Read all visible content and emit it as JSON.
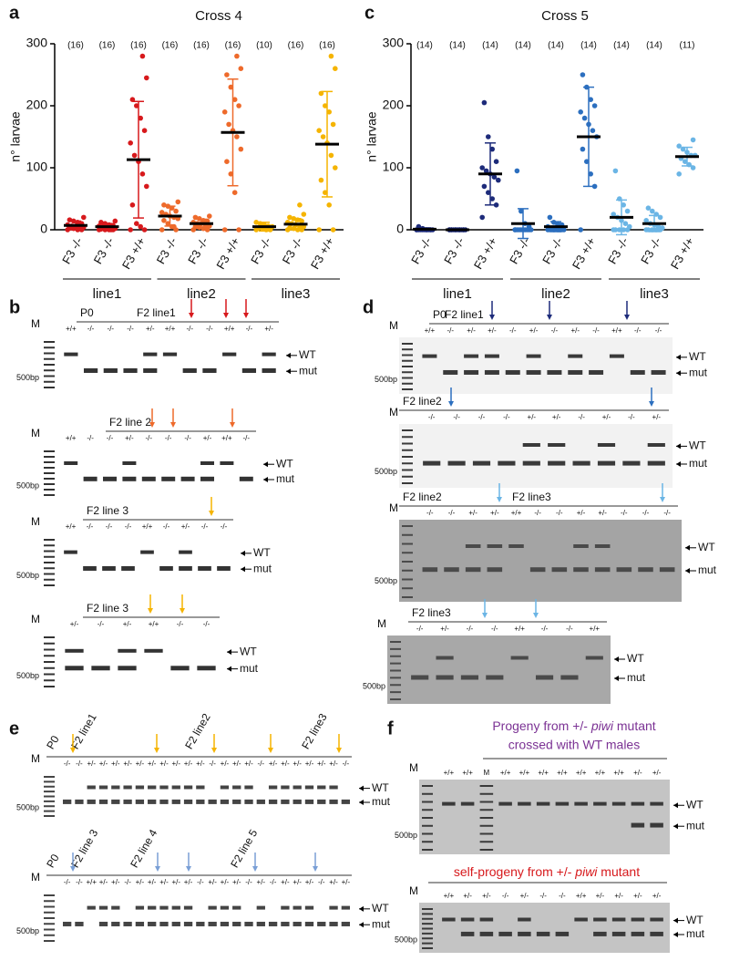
{
  "chart_data": [
    {
      "type": "strip",
      "panel": "a",
      "title": "Cross 4",
      "ylabel": "n° larvae",
      "ylim": [
        0,
        300
      ],
      "yticks": [
        0,
        100,
        200,
        300
      ],
      "categories": [
        "F3 -/-",
        "F3 -/-",
        "F3 +/+",
        "F3 -/-",
        "F3 -/-",
        "F3 +/+",
        "F3 -/-",
        "F3 -/-",
        "F3 +/+"
      ],
      "n_labels": [
        "(16)",
        "(16)",
        "(16)",
        "(16)",
        "(16)",
        "(16)",
        "(10)",
        "(16)",
        "(16)"
      ],
      "colors": [
        "#d7191c",
        "#d7191c",
        "#d7191c",
        "#ee6a2b",
        "#ee6a2b",
        "#ee6a2b",
        "#f5b400",
        "#f5b400",
        "#f5b400"
      ],
      "points": [
        [
          0,
          0,
          0,
          2,
          3,
          4,
          5,
          5,
          6,
          8,
          10,
          12,
          14,
          16,
          20,
          2
        ],
        [
          0,
          0,
          0,
          0,
          1,
          2,
          3,
          4,
          5,
          6,
          7,
          8,
          10,
          12,
          14,
          0
        ],
        [
          0,
          0,
          5,
          10,
          40,
          70,
          90,
          110,
          120,
          140,
          160,
          180,
          200,
          210,
          245,
          280
        ],
        [
          0,
          0,
          5,
          10,
          15,
          18,
          20,
          22,
          25,
          28,
          30,
          35,
          38,
          40,
          45,
          5
        ],
        [
          0,
          0,
          2,
          4,
          5,
          6,
          8,
          10,
          10,
          12,
          14,
          15,
          18,
          20,
          22,
          4
        ],
        [
          0,
          0,
          60,
          90,
          110,
          130,
          150,
          160,
          170,
          190,
          200,
          210,
          230,
          250,
          260,
          280
        ],
        [
          0,
          0,
          0,
          2,
          3,
          5,
          6,
          8,
          10,
          12
        ],
        [
          0,
          0,
          0,
          2,
          3,
          5,
          6,
          8,
          10,
          12,
          14,
          16,
          18,
          20,
          25,
          40
        ],
        [
          0,
          0,
          40,
          60,
          80,
          100,
          120,
          140,
          150,
          160,
          170,
          190,
          200,
          220,
          260,
          280
        ]
      ],
      "means": [
        7,
        5,
        113,
        22,
        10,
        157,
        5,
        9,
        138
      ],
      "sd": [
        7,
        5,
        94,
        16,
        7,
        86,
        7,
        9,
        85
      ],
      "groups": [
        {
          "label": "line1",
          "color": "#d7191c"
        },
        {
          "label": "line2",
          "color": "#ee6a2b"
        },
        {
          "label": "line3",
          "color": "#f5b400"
        }
      ]
    },
    {
      "type": "strip",
      "panel": "c",
      "title": "Cross 5",
      "ylabel": "n° larvae",
      "ylim": [
        0,
        300
      ],
      "yticks": [
        0,
        100,
        200,
        300
      ],
      "categories": [
        "F3 -/-",
        "F3 -/-",
        "F3 +/+",
        "F3 -/-",
        "F3 -/-",
        "F3 +/+",
        "F3 -/-",
        "F3 -/-",
        "F3 +/+"
      ],
      "n_labels": [
        "(14)",
        "(14)",
        "(14)",
        "(14)",
        "(14)",
        "(14)",
        "(14)",
        "(14)",
        "(11)"
      ],
      "colors": [
        "#1d2b7a",
        "#1d2b7a",
        "#1d2b7a",
        "#2c6fbf",
        "#2c6fbf",
        "#2c6fbf",
        "#6bb5e5",
        "#6bb5e5",
        "#6bb5e5"
      ],
      "points": [
        [
          0,
          0,
          0,
          0,
          0,
          0,
          0,
          0,
          0,
          0,
          0,
          0,
          2,
          5
        ],
        [
          0,
          0,
          0,
          0,
          0,
          0,
          0,
          0,
          0,
          0,
          0,
          0,
          0,
          0
        ],
        [
          20,
          40,
          50,
          60,
          70,
          80,
          85,
          90,
          95,
          100,
          110,
          130,
          150,
          205
        ],
        [
          0,
          0,
          0,
          0,
          0,
          0,
          0,
          0,
          0,
          0,
          5,
          10,
          30,
          95
        ],
        [
          0,
          0,
          0,
          0,
          0,
          0,
          0,
          2,
          3,
          5,
          8,
          10,
          12,
          20
        ],
        [
          0,
          70,
          90,
          110,
          130,
          150,
          160,
          170,
          180,
          190,
          200,
          210,
          230,
          250
        ],
        [
          0,
          0,
          0,
          0,
          0,
          5,
          10,
          15,
          20,
          25,
          30,
          40,
          50,
          95
        ],
        [
          0,
          0,
          0,
          0,
          0,
          3,
          5,
          8,
          10,
          15,
          20,
          25,
          30,
          35
        ],
        [
          90,
          100,
          105,
          110,
          115,
          120,
          120,
          125,
          130,
          135,
          145
        ]
      ],
      "means": [
        1,
        0,
        90,
        10,
        5,
        150,
        20,
        10,
        118
      ],
      "sd": [
        2,
        0,
        50,
        24,
        8,
        80,
        28,
        13,
        15
      ],
      "groups": [
        {
          "label": "line1",
          "color": "#1d2b7a"
        },
        {
          "label": "line2",
          "color": "#2c6fbf"
        },
        {
          "label": "line3",
          "color": "#6bb5e5"
        }
      ]
    }
  ],
  "gels": [
    {
      "panel": "b",
      "marker": "M",
      "size": "500bp",
      "wt": "WT",
      "mut": "mut",
      "headings": [
        {
          "text": "P0",
          "color": "#111"
        },
        {
          "text": "F2 line1",
          "color": "#d7191c"
        }
      ],
      "lanes": [
        "+/+",
        "-/-",
        "-/-",
        "-/-",
        "+/-",
        "+/+",
        "-/-",
        "-/-",
        "+/+",
        "-/-",
        "+/-"
      ]
    },
    {
      "marker": "M",
      "size": "500bp",
      "wt": "WT",
      "mut": "mut",
      "headings": [
        {
          "text": "F2 line 2",
          "color": "#ee6a2b"
        }
      ],
      "lanes": [
        "+/+",
        "-/-",
        "-/-",
        "+/-",
        "-/-",
        "-/-",
        "-/-",
        "+/-",
        "+/+",
        "-/-"
      ]
    },
    {
      "marker": "M",
      "size": "500bp",
      "wt": "WT",
      "mut": "mut",
      "headings": [
        {
          "text": "F2 line 3",
          "color": "#f5b400"
        }
      ],
      "lanes": [
        "+/+",
        "-/-",
        "-/-",
        "-/-",
        "+/+",
        "-/-",
        "+/-",
        "-/-",
        "-/-"
      ]
    },
    {
      "marker": "M",
      "size": "500bp",
      "wt": "WT",
      "mut": "mut",
      "headings": [
        {
          "text": "F2 line 3",
          "color": "#f5b400"
        }
      ],
      "lanes": [
        "+/-",
        "-/-",
        "+/-",
        "+/+",
        "-/-",
        "-/-"
      ]
    },
    {
      "panel": "d",
      "marker": "M",
      "size": "500bp",
      "wt": "WT",
      "mut": "mut",
      "headings": [
        {
          "text": "P0",
          "color": "#111"
        },
        {
          "text": "F2 line1",
          "color": "#1d2b7a"
        }
      ],
      "lanes": [
        "+/+",
        "-/-",
        "+/-",
        "+/-",
        "-/-",
        "+/-",
        "-/-",
        "+/-",
        "-/-",
        "+/+",
        "-/-",
        "-/-"
      ]
    },
    {
      "marker": "M",
      "size": "500bp",
      "wt": "WT",
      "mut": "mut",
      "headings": [
        {
          "text": "F2 line2",
          "color": "#2c6fbf"
        }
      ],
      "lanes": [
        "-/-",
        "-/-",
        "-/-",
        "-/-",
        "+/-",
        "+/-",
        "-/-",
        "+/-",
        "-/-",
        "+/-"
      ]
    },
    {
      "marker": "M",
      "size": "500bp",
      "wt": "WT",
      "mut": "mut",
      "headings": [
        {
          "text": "F2 line2",
          "color": "#2c6fbf"
        },
        {
          "text": "F2 line3",
          "color": "#6bb5e5"
        }
      ],
      "lanes": [
        "-/-",
        "-/-",
        "+/-",
        "+/-",
        "+/+",
        "-/-",
        "-/-",
        "+/-",
        "+/-",
        "-/-",
        "-/-",
        "-/-"
      ]
    },
    {
      "marker": "M",
      "size": "500bp",
      "wt": "WT",
      "mut": "mut",
      "headings": [
        {
          "text": "F2 line3",
          "color": "#6bb5e5"
        }
      ],
      "lanes": [
        "-/-",
        "+/-",
        "-/-",
        "-/-",
        "+/+",
        "-/-",
        "-/-",
        "+/+"
      ]
    },
    {
      "panel": "e",
      "marker": "M",
      "size": "500bp",
      "wt": "WT",
      "mut": "mut",
      "headings": [
        {
          "text": "P0",
          "color": "#111"
        },
        {
          "text": "F2 line1",
          "color": "#d7191c"
        },
        {
          "text": "F2 line2",
          "color": "#f08ca0"
        },
        {
          "text": "F2 line3",
          "color": "#f5b400"
        }
      ],
      "lanes": [
        "-/-",
        "-/-",
        "+/-",
        "+/-",
        "+/-",
        "+/-",
        "+/-",
        "+/-",
        "+/-",
        "+/-",
        "+/-",
        "+/-",
        "-/-",
        "+/-",
        "+/-",
        "+/-",
        "-/-",
        "+/-",
        "+/-",
        "+/-",
        "+/-",
        "+/-",
        "+/-",
        "-/-"
      ]
    },
    {
      "marker": "M",
      "size": "500bp",
      "wt": "WT",
      "mut": "mut",
      "headings": [
        {
          "text": "P0",
          "color": "#111"
        },
        {
          "text": "F2 line 3",
          "color": "#f5b400"
        },
        {
          "text": "F2 line 4",
          "color": "#2a4a9a"
        },
        {
          "text": "F2 line 5",
          "color": "#7a9fd6"
        }
      ],
      "lanes": [
        "-/-",
        "-/-",
        "+/+",
        "+/-",
        "+/-",
        "-/-",
        "+/-",
        "+/-",
        "+/-",
        "+/-",
        "+/-",
        "-/-",
        "+/-",
        "+/-",
        "+/-",
        "-/-",
        "+/-",
        "-/-",
        "+/-",
        "+/-",
        "+/-",
        "-/-",
        "+/-",
        "+/-"
      ]
    },
    {
      "panel": "f",
      "marker": "M",
      "size": "500bp",
      "wt": "WT",
      "mut": "mut",
      "headings": [],
      "lanes": [
        "+/+",
        "+/+",
        "M",
        "+/+",
        "+/+",
        "+/+",
        "+/+",
        "+/+",
        "+/+",
        "+/+",
        "+/-",
        "+/-"
      ]
    },
    {
      "marker": "M",
      "size": "500bp",
      "wt": "WT",
      "mut": "mut",
      "headings": [],
      "lanes": [
        "+/+",
        "+/-",
        "+/-",
        "-/-",
        "+/-",
        "-/-",
        "-/-",
        "+/+",
        "+/-",
        "+/-",
        "+/-",
        "+/-"
      ]
    }
  ],
  "f_headings": {
    "top": {
      "before": "Progeny from +/- ",
      "gene": "piwi",
      "after": " mutant",
      "line2": "crossed with WT males",
      "color": "#7b3294"
    },
    "bottom": {
      "before": "self-progeny from +/- ",
      "gene": "piwi",
      "after": " mutant",
      "color": "#d7191c"
    }
  }
}
